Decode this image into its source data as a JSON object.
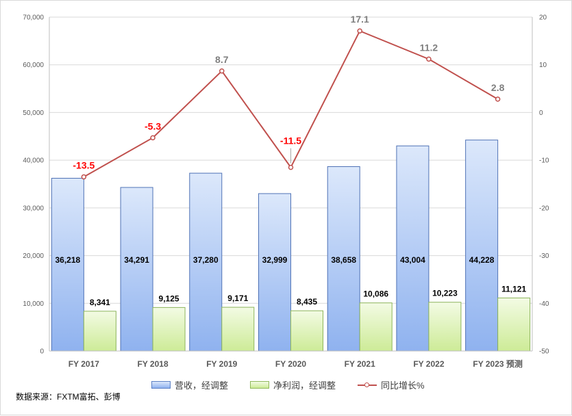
{
  "chart_data": {
    "type": "bar",
    "categories": [
      "FY 2017",
      "FY 2018",
      "FY 2019",
      "FY 2020",
      "FY 2021",
      "FY 2022",
      "FY 2023 预测"
    ],
    "series": [
      {
        "name": "营收，经调整",
        "type": "bar",
        "axis": "left",
        "values": [
          36218,
          34291,
          37280,
          32999,
          38658,
          43004,
          44228
        ],
        "labels": [
          "36,218",
          "34,291",
          "37,280",
          "32,999",
          "38,658",
          "43,004",
          "44,228"
        ],
        "color": "#9cbdf4"
      },
      {
        "name": "净利润，经调整",
        "type": "bar",
        "axis": "left",
        "values": [
          8341,
          9125,
          9171,
          8435,
          10086,
          10223,
          11121
        ],
        "labels": [
          "8,341",
          "9,125",
          "9,171",
          "8,435",
          "10,086",
          "10,223",
          "11,121"
        ],
        "color": "#d8f0a8"
      },
      {
        "name": "同比增长%",
        "type": "line",
        "axis": "right",
        "values": [
          -13.5,
          -5.3,
          8.7,
          -11.5,
          17.1,
          11.2,
          2.8
        ],
        "labels": [
          "-13.5",
          "-5.3",
          "8.7",
          "-11.5",
          "17.1",
          "11.2",
          "2.8"
        ],
        "color": "#c0504d",
        "label_colors": [
          "#ff0000",
          "#ff0000",
          "#7f7f7f",
          "#ff0000",
          "#7f7f7f",
          "#7f7f7f",
          "#7f7f7f"
        ]
      }
    ],
    "y_left": {
      "range": [
        0,
        70000
      ],
      "ticks": [
        0,
        10000,
        20000,
        30000,
        40000,
        50000,
        60000,
        70000
      ],
      "tick_labels": [
        "0",
        "10,000",
        "20,000",
        "30,000",
        "40,000",
        "50,000",
        "60,000",
        "70,000"
      ]
    },
    "y_right": {
      "range": [
        -50,
        20
      ],
      "ticks": [
        -50,
        -40,
        -30,
        -20,
        -10,
        0,
        10,
        20
      ],
      "tick_labels": [
        "-50",
        "-40",
        "-30",
        "-20",
        "-10",
        "0",
        "10",
        "20"
      ]
    },
    "grid": true,
    "legend_position": "bottom",
    "source": "数据来源：FXTM富拓、彭博"
  }
}
